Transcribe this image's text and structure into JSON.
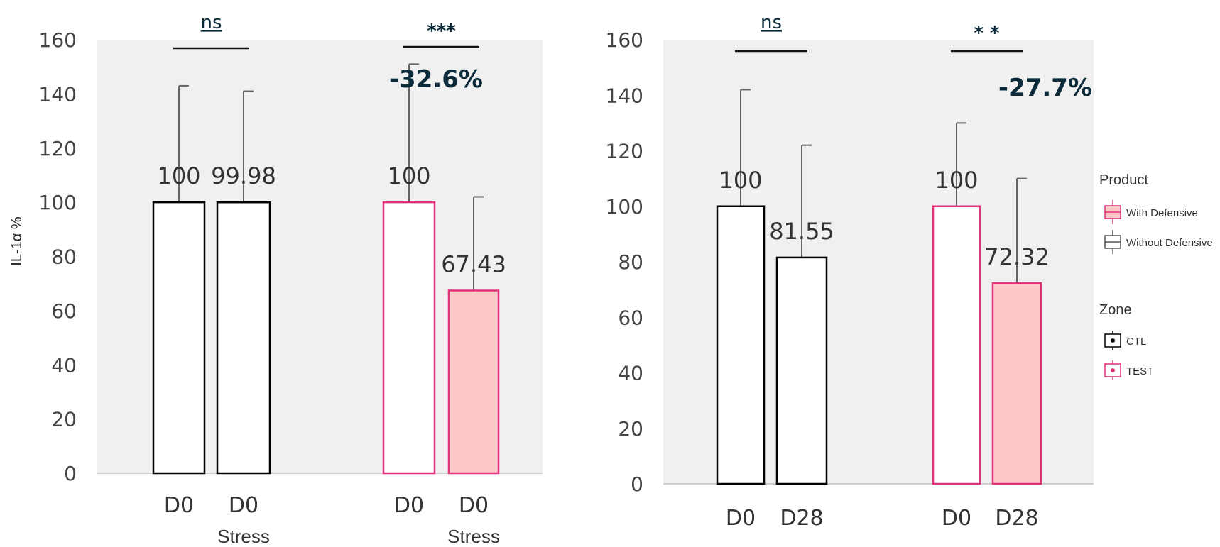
{
  "colors": {
    "panel_bg": "#f0f0f0",
    "ctl_edge": "#000000",
    "test_edge": "#e0327a",
    "with_fill": "#fcc8c8",
    "without_fill": "#ffffff",
    "annotation": "#0b2a3a"
  },
  "chart_data": [
    {
      "type": "bar",
      "ylabel": "IL-1α %",
      "ylim": [
        0,
        160
      ],
      "yticks": [
        0,
        20,
        40,
        60,
        80,
        100,
        120,
        140,
        160
      ],
      "grid": false,
      "groups": [
        {
          "zone": "CTL",
          "bars": [
            {
              "label": "D0",
              "sublabel": "",
              "value": 100,
              "value_label": "100",
              "error_upper": 143,
              "product": "Without Defensive"
            },
            {
              "label": "D0",
              "sublabel": "Stress",
              "value": 99.98,
              "value_label": "99.98",
              "error_upper": 141,
              "product": "Without Defensive"
            }
          ],
          "significance": "ns",
          "change": ""
        },
        {
          "zone": "TEST",
          "bars": [
            {
              "label": "D0",
              "sublabel": "",
              "value": 100,
              "value_label": "100",
              "error_upper": 151,
              "product": "Without Defensive"
            },
            {
              "label": "D0",
              "sublabel": "Stress",
              "value": 67.43,
              "value_label": "67.43",
              "error_upper": 102,
              "product": "With Defensive"
            }
          ],
          "significance": "***",
          "change": "-32.6%"
        }
      ]
    },
    {
      "type": "bar",
      "ylabel": "",
      "ylim": [
        0,
        160
      ],
      "yticks": [
        0,
        20,
        40,
        60,
        80,
        100,
        120,
        140,
        160
      ],
      "grid": false,
      "groups": [
        {
          "zone": "CTL",
          "bars": [
            {
              "label": "D0",
              "sublabel": "",
              "value": 100,
              "value_label": "100",
              "error_upper": 142,
              "product": "Without Defensive"
            },
            {
              "label": "D28",
              "sublabel": "",
              "value": 81.55,
              "value_label": "81.55",
              "error_upper": 122,
              "product": "Without Defensive"
            }
          ],
          "significance": "ns",
          "change": ""
        },
        {
          "zone": "TEST",
          "bars": [
            {
              "label": "D0",
              "sublabel": "",
              "value": 100,
              "value_label": "100",
              "error_upper": 130,
              "product": "Without Defensive"
            },
            {
              "label": "D28",
              "sublabel": "",
              "value": 72.32,
              "value_label": "72.32",
              "error_upper": 110,
              "product": "With Defensive"
            }
          ],
          "significance": "* *",
          "change": "-27.7%"
        }
      ]
    }
  ],
  "legend": {
    "placement": "right",
    "product_title": "Product",
    "product_items": [
      {
        "label": "With Defensive",
        "fill": "#fcc8c8",
        "edge": "#e0327a"
      },
      {
        "label": "Without Defensive",
        "fill": "#ffffff",
        "edge": "#555555"
      }
    ],
    "zone_title": "Zone",
    "zone_items": [
      {
        "label": "CTL",
        "edge": "#000000"
      },
      {
        "label": "TEST",
        "edge": "#e0327a"
      }
    ]
  }
}
